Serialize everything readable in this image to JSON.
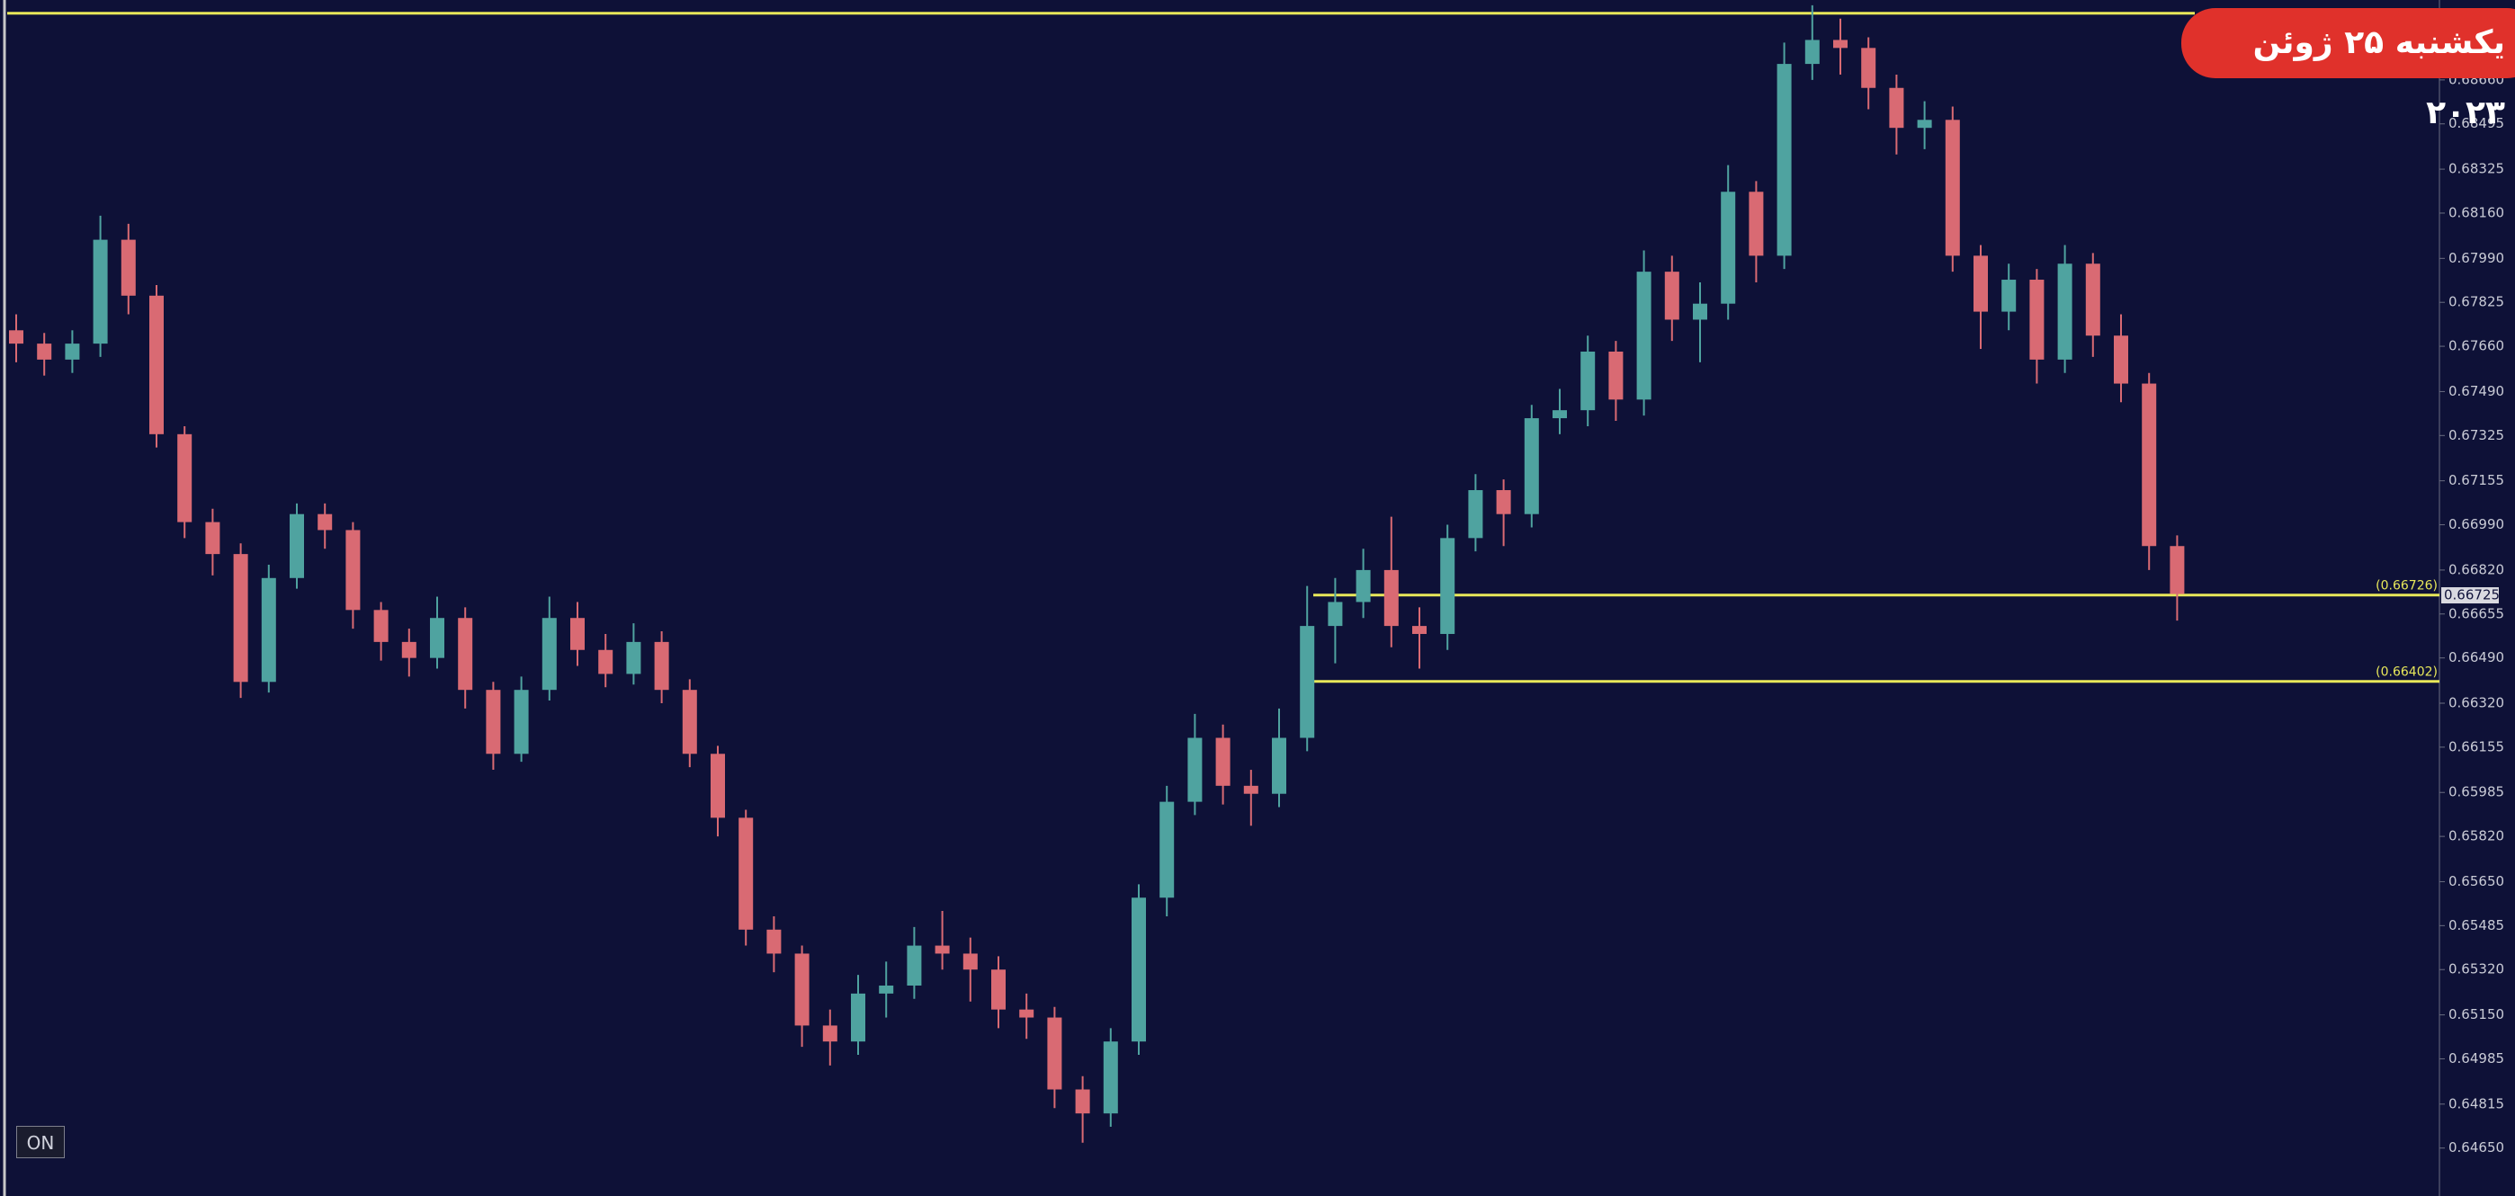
{
  "chart_data": {
    "type": "candlestick",
    "badge": "یکشنبه ۲۵ ژوئن ۲۰۲۳",
    "button": "ON",
    "up_color": "#4fa3a0",
    "down_color": "#d96a73",
    "level_color": "#e8e85a",
    "ylim": [
      0.6447,
      0.6896
    ],
    "yticks": [
      {
        "value": 0.6866,
        "label": "0.68660"
      },
      {
        "value": 0.68495,
        "label": "0.68495"
      },
      {
        "value": 0.68325,
        "label": "0.68325"
      },
      {
        "value": 0.6816,
        "label": "0.68160"
      },
      {
        "value": 0.6799,
        "label": "0.67990"
      },
      {
        "value": 0.67825,
        "label": "0.67825"
      },
      {
        "value": 0.6766,
        "label": "0.67660"
      },
      {
        "value": 0.6749,
        "label": "0.67490"
      },
      {
        "value": 0.67325,
        "label": "0.67325"
      },
      {
        "value": 0.67155,
        "label": "0.67155"
      },
      {
        "value": 0.6699,
        "label": "0.66990"
      },
      {
        "value": 0.6682,
        "label": "0.66820"
      },
      {
        "value": 0.66655,
        "label": "0.66655"
      },
      {
        "value": 0.6649,
        "label": "0.66490"
      },
      {
        "value": 0.6632,
        "label": "0.66320"
      },
      {
        "value": 0.66155,
        "label": "0.66155"
      },
      {
        "value": 0.65985,
        "label": "0.65985"
      },
      {
        "value": 0.6582,
        "label": "0.65820"
      },
      {
        "value": 0.6565,
        "label": "0.65650"
      },
      {
        "value": 0.65485,
        "label": "0.65485"
      },
      {
        "value": 0.6532,
        "label": "0.65320"
      },
      {
        "value": 0.6515,
        "label": "0.65150"
      },
      {
        "value": 0.64985,
        "label": "0.64985"
      },
      {
        "value": 0.64815,
        "label": "0.64815"
      },
      {
        "value": 0.6465,
        "label": "0.64650"
      }
    ],
    "levels": [
      {
        "value": 0.6891
      },
      {
        "value": 0.66726,
        "label": "(0.66726)"
      },
      {
        "value": 0.66402,
        "label": "(0.66402)"
      }
    ],
    "current_price": {
      "value": 0.66725,
      "label": "0.66725"
    },
    "candles": [
      [
        0.6772,
        0.6778,
        0.676,
        0.6767
      ],
      [
        0.6767,
        0.6771,
        0.6755,
        0.6761
      ],
      [
        0.6761,
        0.6772,
        0.6756,
        0.6767
      ],
      [
        0.6767,
        0.6815,
        0.6762,
        0.6806
      ],
      [
        0.6806,
        0.6812,
        0.6778,
        0.6785
      ],
      [
        0.6785,
        0.6789,
        0.6728,
        0.6733
      ],
      [
        0.6733,
        0.6736,
        0.6694,
        0.67
      ],
      [
        0.67,
        0.6705,
        0.668,
        0.6688
      ],
      [
        0.6688,
        0.6692,
        0.6634,
        0.664
      ],
      [
        0.664,
        0.6684,
        0.6636,
        0.6679
      ],
      [
        0.6679,
        0.6707,
        0.6675,
        0.6703
      ],
      [
        0.6703,
        0.6707,
        0.669,
        0.6697
      ],
      [
        0.6697,
        0.67,
        0.666,
        0.6667
      ],
      [
        0.6667,
        0.667,
        0.6648,
        0.6655
      ],
      [
        0.6655,
        0.666,
        0.6642,
        0.6649
      ],
      [
        0.6649,
        0.6672,
        0.6645,
        0.6664
      ],
      [
        0.6664,
        0.6668,
        0.663,
        0.6637
      ],
      [
        0.6637,
        0.664,
        0.6607,
        0.6613
      ],
      [
        0.6613,
        0.6642,
        0.661,
        0.6637
      ],
      [
        0.6637,
        0.6672,
        0.6633,
        0.6664
      ],
      [
        0.6664,
        0.667,
        0.6646,
        0.6652
      ],
      [
        0.6652,
        0.6658,
        0.6638,
        0.6643
      ],
      [
        0.6643,
        0.6662,
        0.6639,
        0.6655
      ],
      [
        0.6655,
        0.6659,
        0.6632,
        0.6637
      ],
      [
        0.6637,
        0.6641,
        0.6608,
        0.6613
      ],
      [
        0.6613,
        0.6616,
        0.6582,
        0.6589
      ],
      [
        0.6589,
        0.6592,
        0.6541,
        0.6547
      ],
      [
        0.6547,
        0.6552,
        0.6531,
        0.6538
      ],
      [
        0.6538,
        0.6541,
        0.6503,
        0.6511
      ],
      [
        0.6511,
        0.6517,
        0.6496,
        0.6505
      ],
      [
        0.6505,
        0.653,
        0.65,
        0.6523
      ],
      [
        0.6523,
        0.6535,
        0.6514,
        0.6526
      ],
      [
        0.6526,
        0.6548,
        0.6521,
        0.6541
      ],
      [
        0.6541,
        0.6554,
        0.6532,
        0.6538
      ],
      [
        0.6538,
        0.6544,
        0.652,
        0.6532
      ],
      [
        0.6532,
        0.6537,
        0.651,
        0.6517
      ],
      [
        0.6517,
        0.6523,
        0.6506,
        0.6514
      ],
      [
        0.6514,
        0.6518,
        0.648,
        0.6487
      ],
      [
        0.6487,
        0.6492,
        0.6467,
        0.6478
      ],
      [
        0.6478,
        0.651,
        0.6473,
        0.6505
      ],
      [
        0.6505,
        0.6564,
        0.65,
        0.6559
      ],
      [
        0.6559,
        0.6601,
        0.6552,
        0.6595
      ],
      [
        0.6595,
        0.6628,
        0.659,
        0.6619
      ],
      [
        0.6619,
        0.6624,
        0.6594,
        0.6601
      ],
      [
        0.6601,
        0.6607,
        0.6586,
        0.6598
      ],
      [
        0.6598,
        0.663,
        0.6593,
        0.6619
      ],
      [
        0.6619,
        0.6676,
        0.6614,
        0.6661
      ],
      [
        0.6661,
        0.6679,
        0.6647,
        0.667
      ],
      [
        0.667,
        0.669,
        0.6664,
        0.6682
      ],
      [
        0.6682,
        0.6702,
        0.6653,
        0.6661
      ],
      [
        0.6661,
        0.6668,
        0.6645,
        0.6658
      ],
      [
        0.6658,
        0.6699,
        0.6652,
        0.6694
      ],
      [
        0.6694,
        0.6718,
        0.6689,
        0.6712
      ],
      [
        0.6712,
        0.6716,
        0.6691,
        0.6703
      ],
      [
        0.6703,
        0.6744,
        0.6698,
        0.6739
      ],
      [
        0.6739,
        0.675,
        0.6733,
        0.6742
      ],
      [
        0.6742,
        0.677,
        0.6736,
        0.6764
      ],
      [
        0.6764,
        0.6768,
        0.6738,
        0.6746
      ],
      [
        0.6746,
        0.6802,
        0.674,
        0.6794
      ],
      [
        0.6794,
        0.68,
        0.6768,
        0.6776
      ],
      [
        0.6776,
        0.679,
        0.676,
        0.6782
      ],
      [
        0.6782,
        0.6834,
        0.6776,
        0.6824
      ],
      [
        0.6824,
        0.6828,
        0.679,
        0.68
      ],
      [
        0.68,
        0.688,
        0.6795,
        0.6872
      ],
      [
        0.6872,
        0.6894,
        0.6866,
        0.6881
      ],
      [
        0.6881,
        0.6889,
        0.6868,
        0.6878
      ],
      [
        0.6878,
        0.6882,
        0.6855,
        0.6863
      ],
      [
        0.6863,
        0.6868,
        0.6838,
        0.6848
      ],
      [
        0.6848,
        0.6858,
        0.684,
        0.6851
      ],
      [
        0.6851,
        0.6856,
        0.6794,
        0.68
      ],
      [
        0.68,
        0.6804,
        0.6765,
        0.6779
      ],
      [
        0.6779,
        0.6797,
        0.6772,
        0.6791
      ],
      [
        0.6791,
        0.6795,
        0.6752,
        0.6761
      ],
      [
        0.6761,
        0.6804,
        0.6756,
        0.6797
      ],
      [
        0.6797,
        0.6801,
        0.6762,
        0.677
      ],
      [
        0.677,
        0.6778,
        0.6745,
        0.6752
      ],
      [
        0.6752,
        0.6756,
        0.6682,
        0.6691
      ],
      [
        0.6691,
        0.6695,
        0.6663,
        0.6673
      ]
    ]
  }
}
